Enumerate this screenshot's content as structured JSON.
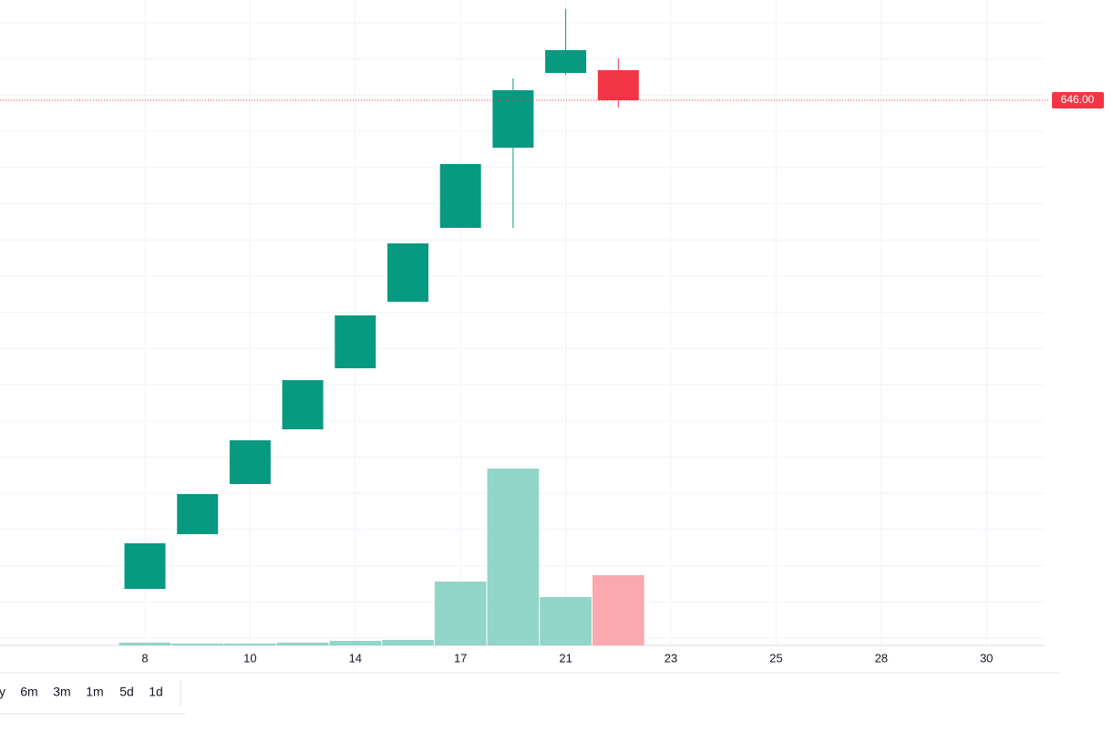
{
  "chart_data": {
    "type": "candlestick",
    "categories": [
      "8",
      null,
      "10",
      null,
      "14",
      null,
      "17",
      null,
      "21",
      null,
      "23",
      null,
      "25",
      null,
      "28",
      null,
      "30"
    ],
    "open": [
      378,
      408,
      435.5,
      465.5,
      499,
      535.5,
      576,
      620,
      661,
      662.5,
      null,
      null,
      null,
      null,
      null,
      null,
      null
    ],
    "high": [
      403,
      430,
      459.5,
      492.5,
      528,
      567.5,
      611,
      658,
      696,
      669,
      null,
      null,
      null,
      null,
      null,
      null,
      null
    ],
    "low": [
      378,
      408,
      435.5,
      465.5,
      499,
      535.5,
      576,
      576,
      660,
      642,
      null,
      null,
      null,
      null,
      null,
      null,
      null
    ],
    "close": [
      403,
      430,
      459.5,
      492.5,
      528,
      567.5,
      611,
      651.5,
      673.5,
      646,
      null,
      null,
      null,
      null,
      null,
      null,
      null
    ],
    "volume": [
      3,
      2,
      2,
      3,
      5,
      6,
      70,
      194,
      53,
      77,
      null,
      null,
      null,
      null,
      null,
      null,
      null
    ],
    "ylim": [
      347,
      701
    ],
    "y2lim": [
      0,
      700
    ],
    "up_color": "#089981",
    "down_color": "#f23645",
    "volume_up_color": "#92d5c9",
    "volume_down_color": "#faa9ae",
    "grid": true,
    "last_price": {
      "value": 646,
      "label": "646.00"
    },
    "ranges": [
      "y",
      "6m",
      "3m",
      "1m",
      "5d",
      "1d"
    ]
  }
}
